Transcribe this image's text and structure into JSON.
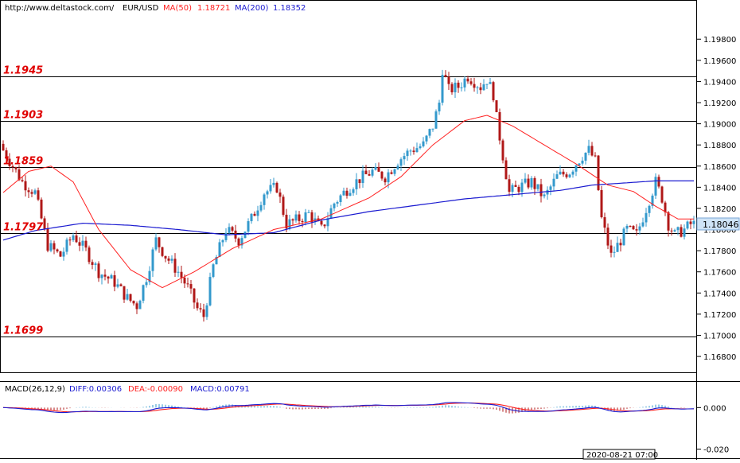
{
  "header": {
    "url": "http://www.deltastock.com/",
    "symbol": "EUR/USD",
    "ma50_label": "MA(50)",
    "ma50_value": "1.18721",
    "ma200_label": "MA(200)",
    "ma200_value": "1.18352"
  },
  "macd_header": {
    "title": "MACD(26,12,9)",
    "diff": "DIFF:0.00306",
    "dea": "DEA:-0.00090",
    "macd": "MACD:0.00791"
  },
  "time_label": "2020-08-21 07:00",
  "colors": {
    "bull": "#3399cc",
    "bear": "#b01818",
    "ma50": "#ff2020",
    "ma200": "#1a1ad0",
    "level_text": "#e00000",
    "price_box": "#cfe4f7"
  },
  "chart_data": [
    {
      "type": "candlestick",
      "panel": "price",
      "title": "EUR/USD",
      "ylim": [
        1.1665,
        1.2002
      ],
      "y_ticks": [
        "1.19800",
        "1.19600",
        "1.19400",
        "1.19200",
        "1.19000",
        "1.18800",
        "1.18600",
        "1.18400",
        "1.18200",
        "1.18000",
        "1.17800",
        "1.17600",
        "1.17400",
        "1.17200",
        "1.17000",
        "1.16800"
      ],
      "current_price": "1.18046",
      "horizontal_levels": [
        {
          "value": 1.1945,
          "label": "1.1945"
        },
        {
          "value": 1.1903,
          "label": "1.1903"
        },
        {
          "value": 1.1859,
          "label": "1.1859"
        },
        {
          "value": 1.1797,
          "label": "1.1797"
        },
        {
          "value": 1.1699,
          "label": "1.1699"
        }
      ],
      "series": [
        {
          "name": "MA(50)",
          "last": 1.18721,
          "anchors": [
            [
              0,
              1.1835
            ],
            [
              8,
              1.1855
            ],
            [
              15,
              1.186
            ],
            [
              22,
              1.1845
            ],
            [
              30,
              1.18
            ],
            [
              40,
              1.1762
            ],
            [
              50,
              1.1745
            ],
            [
              60,
              1.176
            ],
            [
              72,
              1.1782
            ],
            [
              85,
              1.18
            ],
            [
              100,
              1.181
            ],
            [
              115,
              1.183
            ],
            [
              125,
              1.185
            ],
            [
              135,
              1.188
            ],
            [
              145,
              1.1903
            ],
            [
              152,
              1.1908
            ],
            [
              160,
              1.1898
            ],
            [
              170,
              1.188
            ],
            [
              180,
              1.1862
            ],
            [
              190,
              1.1842
            ],
            [
              198,
              1.1836
            ],
            [
              205,
              1.1822
            ],
            [
              212,
              1.181
            ]
          ]
        },
        {
          "name": "MA(200)",
          "last": 1.18352,
          "anchors": [
            [
              0,
              1.179
            ],
            [
              10,
              1.1799
            ],
            [
              25,
              1.1806
            ],
            [
              40,
              1.1804
            ],
            [
              55,
              1.18
            ],
            [
              70,
              1.1795
            ],
            [
              85,
              1.1797
            ],
            [
              100,
              1.1809
            ],
            [
              115,
              1.1817
            ],
            [
              130,
              1.1823
            ],
            [
              145,
              1.1829
            ],
            [
              160,
              1.1833
            ],
            [
              175,
              1.1837
            ],
            [
              185,
              1.1842
            ],
            [
              195,
              1.1844
            ],
            [
              205,
              1.1846
            ],
            [
              212,
              1.1846
            ]
          ]
        }
      ],
      "close_anchors": [
        [
          0,
          1.1875
        ],
        [
          6,
          1.1845
        ],
        [
          10,
          1.1835
        ],
        [
          14,
          1.1785
        ],
        [
          18,
          1.1775
        ],
        [
          22,
          1.1795
        ],
        [
          26,
          1.178
        ],
        [
          30,
          1.176
        ],
        [
          35,
          1.175
        ],
        [
          39,
          1.1735
        ],
        [
          42,
          1.1728
        ],
        [
          45,
          1.1755
        ],
        [
          48,
          1.179
        ],
        [
          51,
          1.1775
        ],
        [
          55,
          1.176
        ],
        [
          58,
          1.1745
        ],
        [
          61,
          1.1725
        ],
        [
          63,
          1.1718
        ],
        [
          66,
          1.1765
        ],
        [
          70,
          1.18
        ],
        [
          74,
          1.179
        ],
        [
          78,
          1.181
        ],
        [
          82,
          1.1835
        ],
        [
          86,
          1.184
        ],
        [
          89,
          1.1805
        ],
        [
          93,
          1.181
        ],
        [
          96,
          1.1815
        ],
        [
          100,
          1.18
        ],
        [
          104,
          1.1825
        ],
        [
          108,
          1.1838
        ],
        [
          112,
          1.1848
        ],
        [
          116,
          1.1855
        ],
        [
          120,
          1.185
        ],
        [
          124,
          1.1865
        ],
        [
          128,
          1.1875
        ],
        [
          132,
          1.188
        ],
        [
          135,
          1.1898
        ],
        [
          137,
          1.192
        ],
        [
          138,
          1.1952
        ],
        [
          140,
          1.1932
        ],
        [
          143,
          1.1935
        ],
        [
          146,
          1.1945
        ],
        [
          150,
          1.1935
        ],
        [
          152,
          1.1942
        ],
        [
          154,
          1.1928
        ],
        [
          155,
          1.1905
        ],
        [
          157,
          1.187
        ],
        [
          159,
          1.1835
        ],
        [
          162,
          1.184
        ],
        [
          166,
          1.1845
        ],
        [
          170,
          1.183
        ],
        [
          174,
          1.185
        ],
        [
          178,
          1.1855
        ],
        [
          182,
          1.187
        ],
        [
          184,
          1.1875
        ],
        [
          186,
          1.1865
        ],
        [
          188,
          1.181
        ],
        [
          191,
          1.1775
        ],
        [
          194,
          1.179
        ],
        [
          196,
          1.18
        ],
        [
          199,
          1.1795
        ],
        [
          202,
          1.182
        ],
        [
          205,
          1.1845
        ],
        [
          207,
          1.183
        ],
        [
          209,
          1.1805
        ],
        [
          211,
          1.1795
        ],
        [
          214,
          1.18
        ],
        [
          216,
          1.1805
        ],
        [
          217,
          1.1805
        ]
      ]
    },
    {
      "type": "macd",
      "panel": "indicator",
      "title": "MACD(26,12,9)",
      "ylim": [
        -0.024,
        0.012
      ],
      "y_ticks": [
        "0.000",
        "-0.020"
      ],
      "values": {
        "DIFF": 0.00306,
        "DEA": -0.0009,
        "MACD": 0.00791
      }
    }
  ]
}
